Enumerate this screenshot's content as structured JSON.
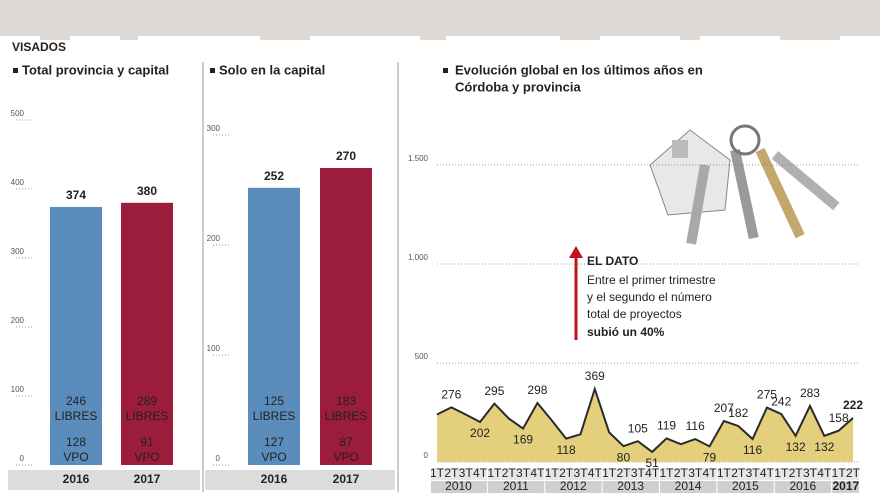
{
  "header": "VISADOS",
  "chart_data": [
    {
      "type": "bar",
      "title": "Total provincia y capital",
      "categories": [
        "2016",
        "2017"
      ],
      "values": [
        374,
        380
      ],
      "colors": [
        "#5a8dbb",
        "#9c1c3c"
      ],
      "segments": [
        {
          "name": "LIBRES",
          "values": [
            246,
            289
          ]
        },
        {
          "name": "VPO",
          "values": [
            128,
            91
          ]
        }
      ],
      "ylim": [
        0,
        500
      ],
      "yticks": [
        0,
        100,
        200,
        300,
        400,
        500
      ],
      "grid": true
    },
    {
      "type": "bar",
      "title": "Solo en la capital",
      "categories": [
        "2016",
        "2017"
      ],
      "values": [
        252,
        270
      ],
      "colors": [
        "#5a8dbb",
        "#9c1c3c"
      ],
      "segments": [
        {
          "name": "LIBRES",
          "values": [
            125,
            183
          ]
        },
        {
          "name": "VPO",
          "values": [
            127,
            87
          ]
        }
      ],
      "ylim": [
        0,
        300
      ],
      "yticks": [
        0,
        100,
        200,
        300
      ],
      "grid": true
    },
    {
      "type": "area",
      "title": [
        "Evolución global en los últimos años en",
        "Córdoba y provincia"
      ],
      "categories": [
        "1T",
        "2T",
        "3T",
        "4T",
        "1T",
        "2T",
        "3T",
        "4T",
        "1T",
        "2T",
        "3T",
        "4T",
        "1T",
        "2T",
        "3T",
        "4T",
        "1T",
        "2T",
        "3T",
        "4T",
        "1T",
        "2T",
        "3T",
        "4T",
        "1T",
        "2T",
        "3T",
        "4T",
        "1T",
        "2T"
      ],
      "years": [
        "2010",
        "2011",
        "2012",
        "2013",
        "2014",
        "2015",
        "2016",
        "2017"
      ],
      "series": [
        {
          "color": "#e3cf7c",
          "values": [
            240,
            276,
            240,
            202,
            295,
            220,
            169,
            298,
            210,
            118,
            140,
            369,
            150,
            80,
            105,
            51,
            119,
            90,
            116,
            79,
            207,
            182,
            116,
            275,
            242,
            132,
            283,
            132,
            158,
            222
          ],
          "value_labels": [
            null,
            "276",
            null,
            "202",
            "295",
            null,
            "169",
            "298",
            null,
            "118",
            null,
            "369",
            null,
            "80",
            "105",
            "51",
            "119",
            null,
            "116",
            "79",
            "207",
            "182",
            "116",
            "275",
            "242",
            "132",
            "283",
            "132",
            "158",
            "222"
          ]
        }
      ],
      "last_label_color": "#d0312d",
      "ylim": [
        0,
        1500
      ],
      "yticks": [
        0,
        500,
        {
          "value": 1000,
          "label": "1.000"
        },
        {
          "value": 1500,
          "label": "1.500"
        }
      ],
      "grid": true,
      "annotation": {
        "title": "EL DATO",
        "lines": [
          "Entre el primer trimestre",
          "y el segundo el número",
          "total de proyectos"
        ],
        "highlight": "subió un 40%",
        "arrow_color": "#c0141c"
      }
    }
  ]
}
